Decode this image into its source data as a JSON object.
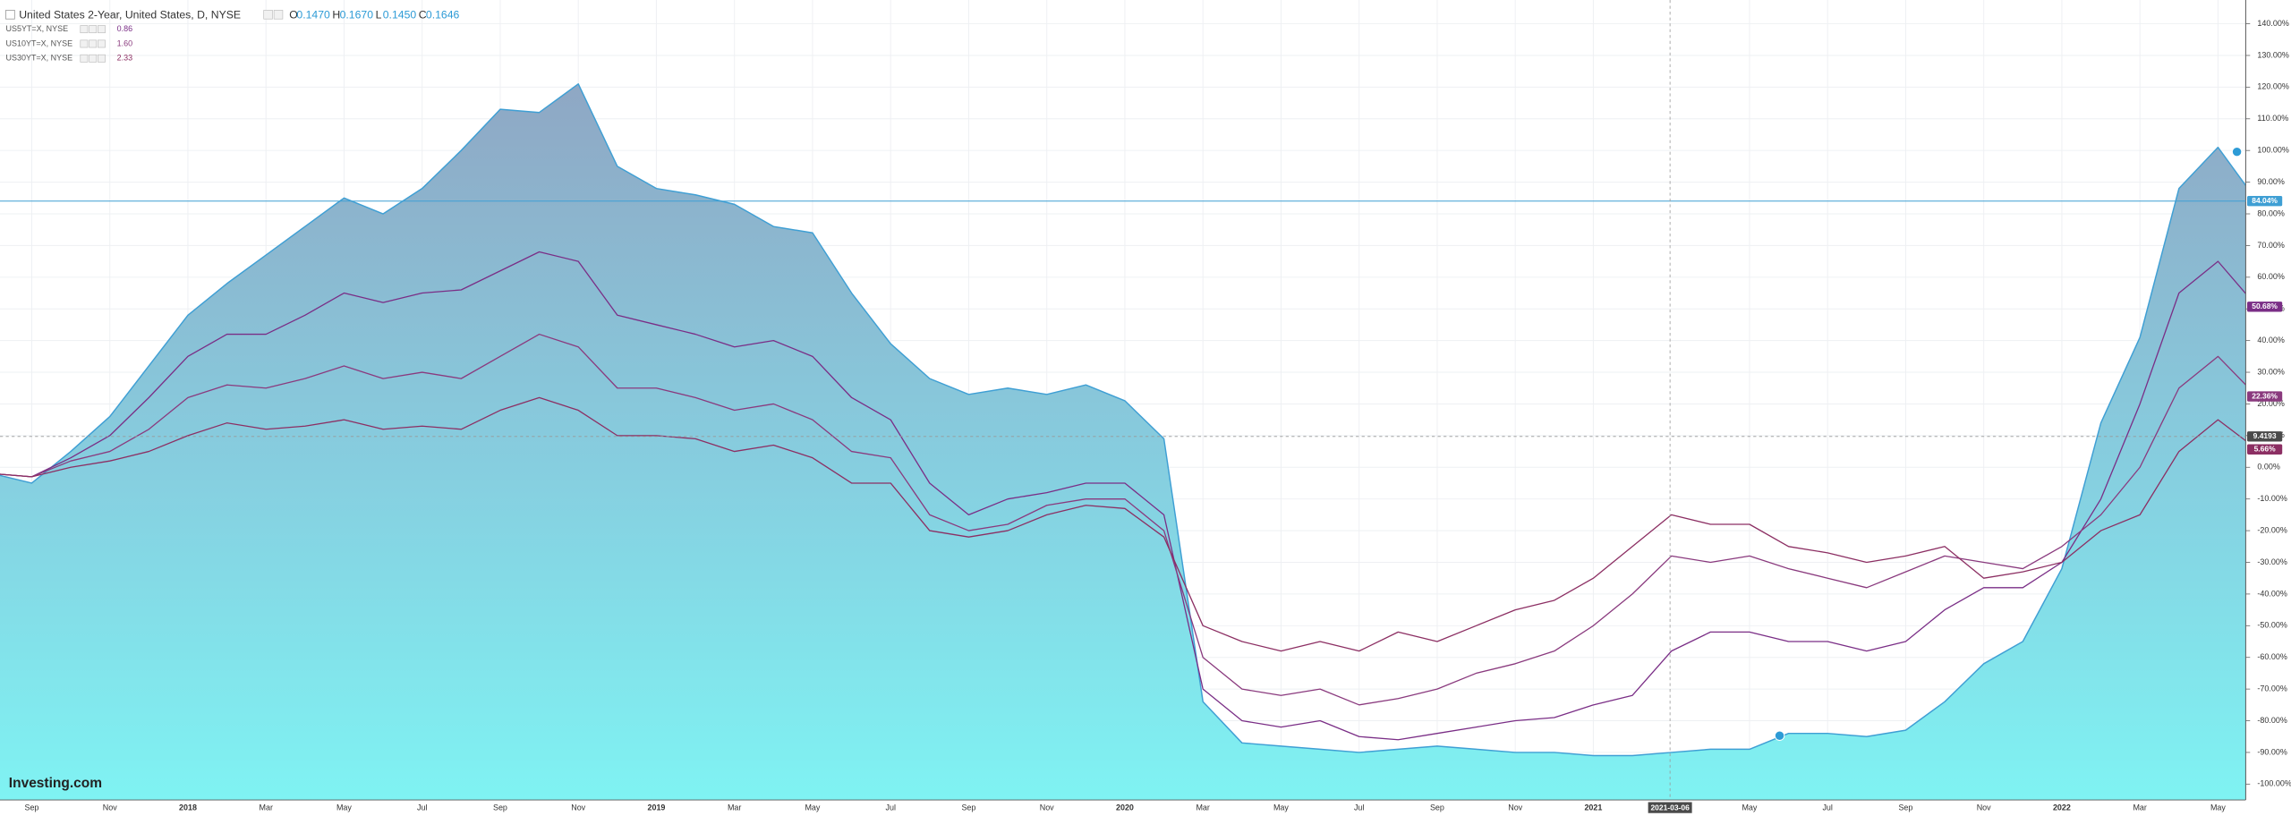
{
  "chart_data": {
    "type": "line",
    "header": {
      "title": "United States 2-Year, United States, D, NYSE",
      "ohlc": [
        {
          "key": "O",
          "value": "0.1470"
        },
        {
          "key": "H",
          "value": "0.1670"
        },
        {
          "key": "L",
          "value": "0.1450"
        },
        {
          "key": "C",
          "value": "0.1646"
        }
      ]
    },
    "logo": "Investing.com",
    "categories": [
      null,
      "Sep",
      null,
      "Nov",
      null,
      "2018",
      null,
      "Mar",
      null,
      "May",
      null,
      "Jul",
      null,
      "Sep",
      null,
      "Nov",
      null,
      "2019",
      null,
      "Mar",
      null,
      "May",
      null,
      "Jul",
      null,
      "Sep",
      null,
      "Nov",
      null,
      "2020",
      null,
      "Mar",
      null,
      "May",
      null,
      "Jul",
      null,
      "Sep",
      null,
      "Nov",
      null,
      "2021",
      null,
      null,
      null,
      "May",
      null,
      "Jul",
      null,
      "Sep",
      null,
      "Nov",
      null,
      "2022",
      null,
      "Mar",
      null,
      "May",
      null
    ],
    "series": [
      {
        "name": "United States 2-Year",
        "area": true,
        "color": "#3f9fd4",
        "last_label": "84.04%",
        "values": [
          -2,
          -5,
          5,
          16,
          32,
          48,
          58,
          67,
          76,
          85,
          80,
          88,
          100,
          113,
          112,
          121,
          95,
          88,
          86,
          83,
          76,
          74,
          55,
          39,
          28,
          23,
          25,
          23,
          26,
          21,
          9,
          -74,
          -87,
          -88,
          -89,
          -90,
          -89,
          -88,
          -89,
          -90,
          -90,
          -91,
          -91,
          -90,
          -89,
          -89,
          -84,
          -84,
          -85,
          -83,
          -74,
          -62,
          -55,
          -32,
          14,
          41,
          88,
          101,
          84.04
        ]
      },
      {
        "name": "US5YT=X, NYSE",
        "legend_value": "0.86",
        "color": "#7a2e86",
        "last_label": "50.68%",
        "values": [
          -2,
          -3,
          3,
          10,
          22,
          35,
          42,
          42,
          48,
          55,
          52,
          55,
          56,
          62,
          68,
          65,
          48,
          45,
          42,
          38,
          40,
          35,
          22,
          15,
          -5,
          -15,
          -10,
          -8,
          -5,
          -5,
          -15,
          -70,
          -80,
          -82,
          -80,
          -85,
          -86,
          -84,
          -82,
          -80,
          -79,
          -75,
          -72,
          -58,
          -52,
          -52,
          -55,
          -55,
          -58,
          -55,
          -45,
          -38,
          -38,
          -30,
          -10,
          20,
          55,
          65,
          50.68
        ]
      },
      {
        "name": "US10YT=X, NYSE",
        "legend_value": "1.60",
        "color": "#8a3a7e",
        "last_label": "22.36%",
        "values": [
          -2,
          -3,
          2,
          5,
          12,
          22,
          26,
          25,
          28,
          32,
          28,
          30,
          28,
          35,
          42,
          38,
          25,
          25,
          22,
          18,
          20,
          15,
          5,
          3,
          -15,
          -20,
          -18,
          -12,
          -10,
          -10,
          -20,
          -60,
          -70,
          -72,
          -70,
          -75,
          -73,
          -70,
          -65,
          -62,
          -58,
          -50,
          -40,
          -28,
          -30,
          -28,
          -32,
          -35,
          -38,
          -33,
          -28,
          -30,
          -32,
          -25,
          -15,
          0,
          25,
          35,
          22.36
        ]
      },
      {
        "name": "US30YT=X, NYSE",
        "legend_value": "2.33",
        "color": "#8c2f63",
        "last_label": "5.66%",
        "values": [
          -2,
          -3,
          0,
          2,
          5,
          10,
          14,
          12,
          13,
          15,
          12,
          13,
          12,
          18,
          22,
          18,
          10,
          10,
          9,
          5,
          7,
          3,
          -5,
          -5,
          -20,
          -22,
          -20,
          -15,
          -12,
          -13,
          -22,
          -50,
          -55,
          -58,
          -55,
          -58,
          -52,
          -55,
          -50,
          -45,
          -42,
          -35,
          -25,
          -15,
          -18,
          -18,
          -25,
          -27,
          -30,
          -28,
          -25,
          -35,
          -33,
          -30,
          -20,
          -15,
          5,
          15,
          5.66
        ]
      }
    ],
    "ylim": [
      -105,
      147.5
    ],
    "yticks": [
      {
        "value": 140,
        "label": "140.00%"
      },
      {
        "value": 130,
        "label": "130.00%"
      },
      {
        "value": 120,
        "label": "120.00%"
      },
      {
        "value": 110,
        "label": "110.00%"
      },
      {
        "value": 100,
        "label": "100.00%"
      },
      {
        "value": 90,
        "label": "90.00%"
      },
      {
        "value": 80,
        "label": "80.00%"
      },
      {
        "value": 70,
        "label": "70.00%"
      },
      {
        "value": 60,
        "label": "60.00%"
      },
      {
        "value": 50,
        "label": "50.00%"
      },
      {
        "value": 40,
        "label": "40.00%"
      },
      {
        "value": 30,
        "label": "30.00%"
      },
      {
        "value": 20,
        "label": "20.00%"
      },
      {
        "value": 10,
        "label": "10.00%"
      },
      {
        "value": 0,
        "label": "0.00%"
      },
      {
        "value": -10,
        "label": "-10.00%"
      },
      {
        "value": -20,
        "label": "-20.00%"
      },
      {
        "value": -30,
        "label": "-30.00%"
      },
      {
        "value": -40,
        "label": "-40.00%"
      },
      {
        "value": -50,
        "label": "-50.00%"
      },
      {
        "value": -60,
        "label": "-60.00%"
      },
      {
        "value": -70,
        "label": "-70.00%"
      },
      {
        "value": -80,
        "label": "-80.00%"
      },
      {
        "value": -90,
        "label": "-90.00%"
      },
      {
        "value": -100,
        "label": "-100.00%"
      }
    ],
    "grid": true,
    "crosshair": {
      "date": "2021-03-06",
      "price": "9.4193"
    }
  }
}
